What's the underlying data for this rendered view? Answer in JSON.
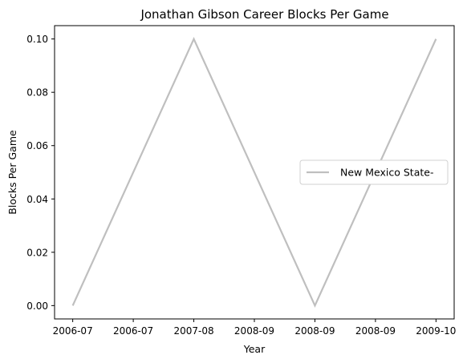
{
  "chart_data": {
    "type": "line",
    "title": "Jonathan Gibson  Career Blocks Per Game",
    "xlabel": "Year",
    "ylabel": "Blocks Per Game",
    "x_tick_labels": [
      "2006-07",
      "2006-07",
      "2007-08",
      "2008-09",
      "2008-09",
      "2008-09",
      "2009-10"
    ],
    "y_tick_labels": [
      "0.00",
      "0.02",
      "0.04",
      "0.06",
      "0.08",
      "0.10"
    ],
    "y_ticks": [
      0.0,
      0.02,
      0.04,
      0.06,
      0.08,
      0.1
    ],
    "ylim": [
      -0.005,
      0.105
    ],
    "xlim": [
      -0.2,
      4.2
    ],
    "grid": false,
    "legend_position": "center-right",
    "series": [
      {
        "name": "New Mexico State-",
        "color": "#bfbfbf",
        "x": [
          0,
          2,
          4
        ],
        "x_labels": [
          "2006-07",
          "2007-08",
          "2009-10"
        ],
        "values": [
          0.0,
          0.1,
          0.1
        ]
      }
    ],
    "points": [
      {
        "x": 0,
        "y": 0.0
      },
      {
        "x": 1,
        "y": 0.1
      },
      {
        "x": 2,
        "y": 0.0
      },
      {
        "x": 3,
        "y": 0.1
      }
    ]
  }
}
